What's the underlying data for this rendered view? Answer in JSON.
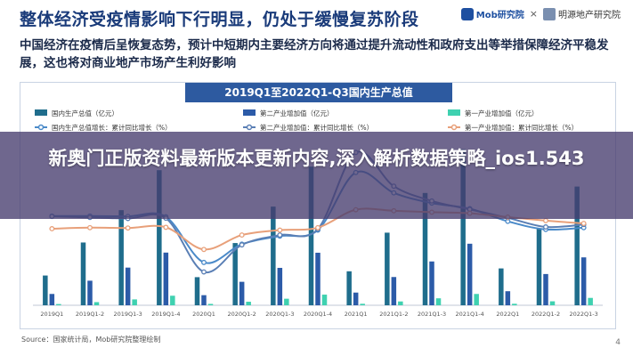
{
  "header": {
    "title": "整体经济受疫情影响下行明显，仍处于缓慢复苏阶段",
    "logo_mob": "Mob研究院",
    "logo_sep": "×",
    "logo_mm": "明源地产研究院"
  },
  "subtitle": "中国经济在疫情后呈恢复态势，预计中短期内主要经济方向将通过提升流动性和政府支出等举措保障经济平稳发展，这也将对商业地产市场产生利好影响",
  "overlay": {
    "text": "新奥门正版资料最新版本更新内容,深入解析数据策略_ios1.543"
  },
  "source": "Source：国家统计局，Mob研究院整理绘制",
  "page_number": "4",
  "colors": {
    "gdp": "#1f6d8c",
    "secondary": "#2c5ba8",
    "primary": "#3fd1b0",
    "gdp_growth": "#4a8ac9",
    "secondary_growth": "#5a7fb5",
    "primary_growth": "#e8a07a"
  },
  "chart_data": {
    "type": "bar",
    "title": "2019Q1至2022Q1-Q3国内生产总值",
    "legend_position": "top",
    "categories": [
      "2019Q1",
      "2019Q1-2",
      "2019Q1-3",
      "2019Q1-4",
      "2020Q1",
      "2020Q1-2",
      "2020Q1-3",
      "2020Q1-4",
      "2021Q1",
      "2021Q1-2",
      "2021Q1-3",
      "2021Q1-4",
      "2022Q1",
      "2022Q1-2",
      "2022Q1-3"
    ],
    "bar_series": [
      {
        "name": "国内生产总值（亿元）",
        "color_key": "gdp",
        "values": [
          218000,
          460000,
          697000,
          990000,
          206000,
          456000,
          723000,
          1016000,
          249000,
          532000,
          823000,
          1143000,
          270000,
          563000,
          870000
        ]
      },
      {
        "name": "第二产业增加值（亿元）",
        "color_key": "secondary",
        "values": [
          83000,
          180000,
          276000,
          386000,
          74000,
          172000,
          274000,
          385000,
          93000,
          207000,
          321000,
          451000,
          103000,
          229000,
          351000
        ]
      },
      {
        "name": "第一产业增加值（亿元）",
        "color_key": "primary",
        "values": [
          9000,
          23000,
          43000,
          70000,
          10000,
          26000,
          48000,
          78000,
          11000,
          28000,
          51000,
          83000,
          11000,
          29000,
          54000
        ]
      }
    ],
    "line_series": [
      {
        "name": "国内生产总值增长：累计同比增长（%）",
        "color_key": "gdp_growth",
        "values": [
          6.3,
          6.3,
          6.2,
          6.1,
          -6.9,
          -1.7,
          0.6,
          2.3,
          18.7,
          12.9,
          10.0,
          8.4,
          4.8,
          2.5,
          3.0
        ]
      },
      {
        "name": "第二产业增加值：累计同比增长（%）",
        "color_key": "secondary_growth",
        "values": [
          6.2,
          5.9,
          5.6,
          5.7,
          -9.6,
          -1.9,
          0.9,
          2.6,
          24.4,
          14.8,
          10.6,
          8.2,
          5.8,
          3.2,
          3.9
        ]
      },
      {
        "name": "第一产业增加值：累计同比增长（%）",
        "color_key": "primary_growth",
        "values": [
          2.7,
          3.0,
          2.9,
          3.1,
          -3.2,
          0.9,
          2.3,
          3.0,
          8.1,
          7.8,
          7.4,
          7.1,
          6.0,
          5.0,
          4.2
        ]
      }
    ],
    "grid": false
  }
}
